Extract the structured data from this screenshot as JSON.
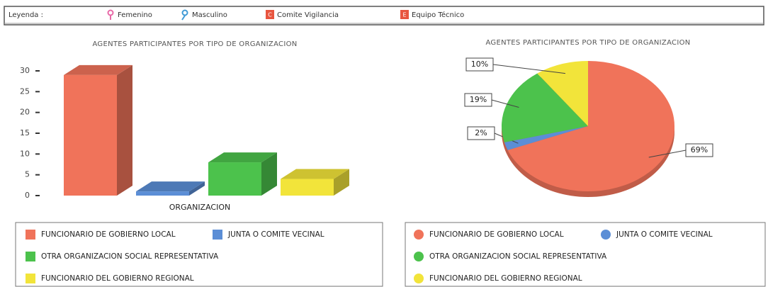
{
  "legend_bar": {
    "title": "Leyenda :",
    "items": [
      {
        "label": "Femenino"
      },
      {
        "label": "Masculino"
      },
      {
        "label": "Comite Vigilancia",
        "icon": "C"
      },
      {
        "label": "Equipo Técnico",
        "icon": "E"
      }
    ]
  },
  "chart_data": [
    {
      "type": "bar",
      "title": "AGENTES PARTICIPANTES POR TIPO DE ORGANIZACION",
      "x_label": "ORGANIZACION",
      "categories": [
        "FUNCIONARIO DE GOBIERNO LOCAL",
        "JUNTA O COMITE VECINAL",
        "OTRA ORGANIZACION SOCIAL REPRESENTATIVA",
        "FUNCIONARIO DEL GOBIERNO REGIONAL"
      ],
      "values": [
        29,
        1,
        8,
        4
      ],
      "colors": [
        "#f0735a",
        "#5b8ed6",
        "#4cc24c",
        "#f2e43a"
      ],
      "ylim": [
        0,
        30
      ],
      "yticks": [
        0,
        5,
        10,
        15,
        20,
        25,
        30
      ]
    },
    {
      "type": "pie",
      "title": "AGENTES PARTICIPANTES POR TIPO DE ORGANIZACION",
      "categories": [
        "FUNCIONARIO DE GOBIERNO LOCAL",
        "JUNTA O COMITE VECINAL",
        "OTRA ORGANIZACION SOCIAL REPRESENTATIVA",
        "FUNCIONARIO DEL GOBIERNO REGIONAL"
      ],
      "values": [
        69,
        2,
        19,
        10
      ],
      "value_labels": [
        "69%",
        "2%",
        "19%",
        "10%"
      ],
      "colors": [
        "#f0735a",
        "#5b8ed6",
        "#4cc24c",
        "#f2e43a"
      ]
    }
  ]
}
